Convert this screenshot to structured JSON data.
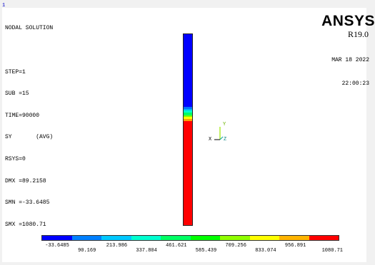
{
  "window_number": "1",
  "info_lines": [
    "NODAL SOLUTION",
    "",
    "STEP=1",
    "SUB =15",
    "TIME=90000",
    "SY       (AVG)",
    "RSYS=0",
    "DMX =89.2158",
    "SMN =-33.6485",
    "SMX =1080.71"
  ],
  "brand": "ANSYS",
  "version": "R19.0",
  "date": "MAR 18 2022",
  "time": "22:00:23",
  "triad": {
    "x_label": "X",
    "y_label": "Y",
    "z_label": "Z"
  },
  "legend": {
    "colors": [
      "#0000ff",
      "#0080ff",
      "#00c8ff",
      "#00ffd0",
      "#00ff64",
      "#00ff00",
      "#90ff00",
      "#ffff00",
      "#ffb400",
      "#ff0000"
    ],
    "labels_top": [
      "-33.6485",
      "213.986",
      "461.621",
      "709.256",
      "956.891"
    ],
    "labels_bottom": [
      "90.169",
      "337.804",
      "585.439",
      "833.074",
      "1080.71"
    ]
  },
  "column_bands": [
    {
      "color": "#0000ff",
      "frac": 0.382
    },
    {
      "color": "#0070ff",
      "frac": 0.008
    },
    {
      "color": "#00b4ff",
      "frac": 0.01
    },
    {
      "color": "#00ffd0",
      "frac": 0.012
    },
    {
      "color": "#00ff64",
      "frac": 0.012
    },
    {
      "color": "#78ff00",
      "frac": 0.01
    },
    {
      "color": "#ffff00",
      "frac": 0.012
    },
    {
      "color": "#ffa000",
      "frac": 0.01
    },
    {
      "color": "#ff0000",
      "frac": 0.544
    }
  ]
}
